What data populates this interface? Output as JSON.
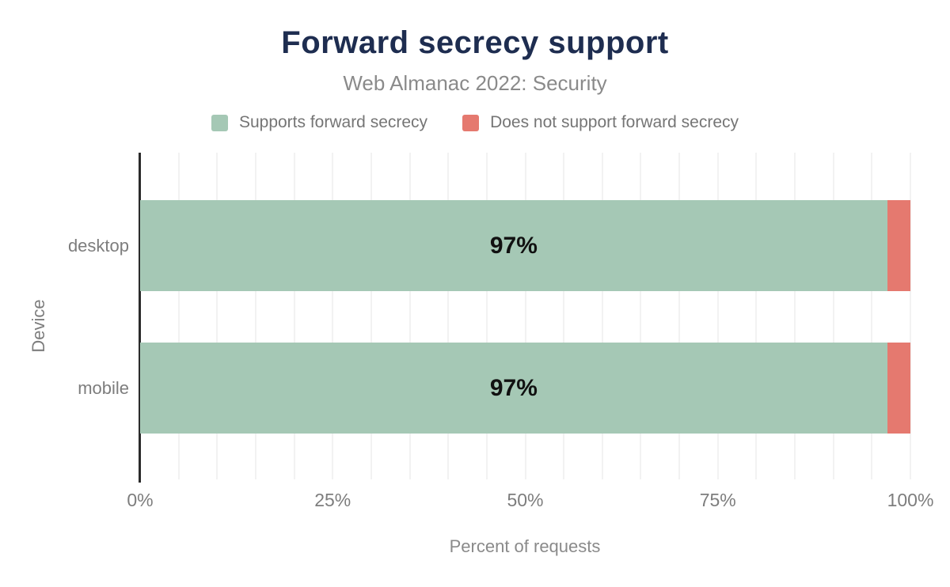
{
  "colors": {
    "title": "#1e2d50",
    "subtitle": "#8a8a8a",
    "axis_text": "#7d7d7d",
    "legend_text": "#757575",
    "bar_label": "#111111",
    "axis_line": "#2b2b2b",
    "gridline": "#f2f2f2",
    "background": "#ffffff",
    "supports": "#a5c8b5",
    "does_not_support": "#e5796f"
  },
  "chart_data": {
    "type": "bar",
    "orientation": "horizontal",
    "stacked": true,
    "title": "Forward secrecy support",
    "subtitle": "Web Almanac 2022: Security",
    "xlabel": "Percent of requests",
    "ylabel": "Device",
    "categories": [
      "desktop",
      "mobile"
    ],
    "series": [
      {
        "name": "Supports forward secrecy",
        "color": "#a5c8b5",
        "values": [
          97,
          97
        ]
      },
      {
        "name": "Does not support forward secrecy",
        "color": "#e5796f",
        "values": [
          3,
          3
        ]
      }
    ],
    "bar_labels": [
      "97%",
      "97%"
    ],
    "xlim": [
      0,
      100
    ],
    "x_ticks": [
      {
        "value": 0,
        "label": "0%"
      },
      {
        "value": 25,
        "label": "25%"
      },
      {
        "value": 50,
        "label": "50%"
      },
      {
        "value": 75,
        "label": "75%"
      },
      {
        "value": 100,
        "label": "100%"
      }
    ],
    "gridline_step": 5,
    "grid": true,
    "legend_position": "top"
  }
}
